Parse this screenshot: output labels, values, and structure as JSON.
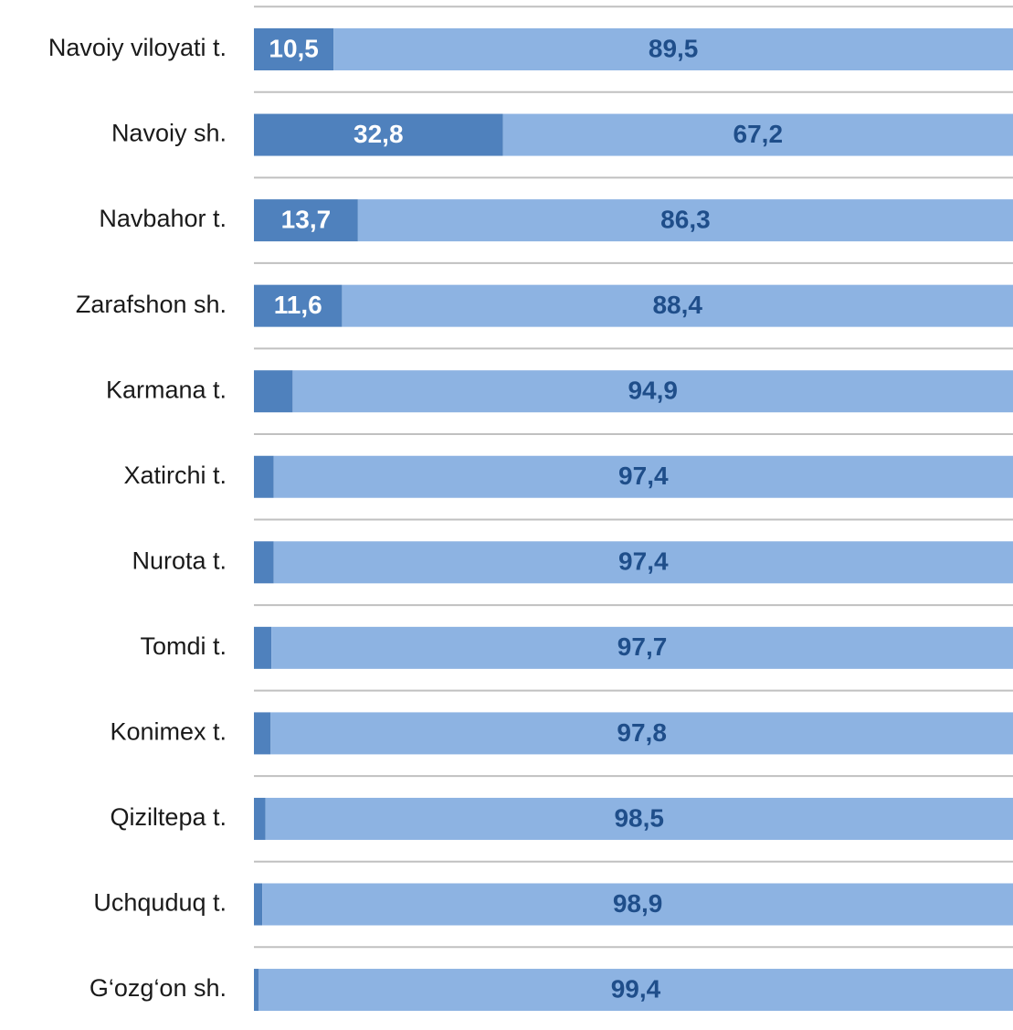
{
  "chart_data": {
    "type": "stacked-bar-horizontal",
    "categories": [
      "Navoiy viloyati t.",
      "Navoiy sh.",
      "Navbahor t.",
      "Zarafshon sh.",
      "Karmana t.",
      "Xatirchi t.",
      "Nurota t.",
      "Tomdi t.",
      "Konimex t.",
      "Qiziltepa t.",
      "Uchquduq t.",
      "G‘ozg‘on sh."
    ],
    "xlim": [
      0,
      100
    ],
    "series": [
      {
        "color": "#4f81bd",
        "label_color": "#ffffff",
        "values": [
          10.5,
          32.8,
          13.7,
          11.6,
          5.1,
          2.6,
          2.6,
          2.3,
          2.2,
          1.5,
          1.1,
          0.6
        ],
        "value_labels": [
          "10,5",
          "32,8",
          "13,7",
          "11,6",
          "5,1",
          "2,6",
          "2,6",
          "2,3",
          "2,2",
          "1,5",
          "1,1",
          "0,6"
        ]
      },
      {
        "color": "#8db3e2",
        "label_color": "#1f4e8a",
        "values": [
          89.5,
          67.2,
          86.3,
          88.4,
          94.9,
          97.4,
          97.4,
          97.7,
          97.8,
          98.5,
          98.9,
          99.4
        ],
        "value_labels": [
          "89,5",
          "67,2",
          "86,3",
          "88,4",
          "94,9",
          "97,4",
          "97,4",
          "97,7",
          "97,8",
          "98,5",
          "98,9",
          "99,4"
        ]
      }
    ]
  }
}
